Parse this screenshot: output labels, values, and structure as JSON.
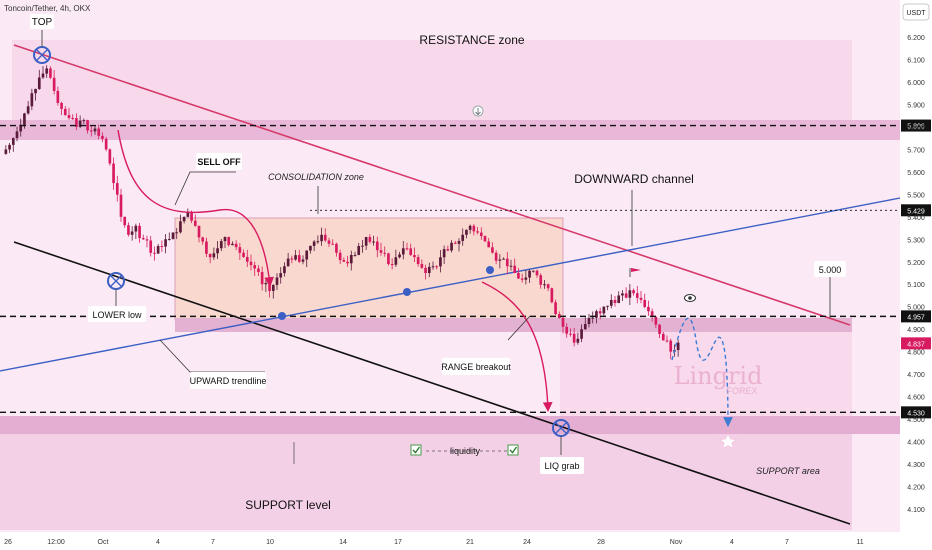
{
  "header": {
    "symbol_title": "Toncoin/Tether, 4h, OKX",
    "currency": "USDT"
  },
  "annotations": {
    "resistance_zone": "RESISTANCE zone",
    "top": "TOP",
    "sell_off": "SELL OFF",
    "consolidation_zone": "CONSOLIDATION zone",
    "downward_channel": "DOWNWARD channel",
    "lower_low": "LOWER low",
    "upward_trendline": "UPWARD trendline",
    "range_breakout": "RANGE breakout",
    "liquidity": "liquidity",
    "liq_grab": "LIQ grab",
    "support_level": "SUPPORT level",
    "support_area": "SUPPORT area",
    "level_5000_callout": "5.000"
  },
  "watermark": {
    "brand": "Lingrid",
    "sub": "FOREX"
  },
  "colors": {
    "background": "#fbeaf5",
    "zone_band": "#e9b8d8",
    "candle_up": "#5b1a3a",
    "candle_down": "#d81b60",
    "channel_upper": "#d63a6a",
    "channel_lower": "#111111",
    "trendline": "#3b5fc4",
    "projection": "#3a7bd5",
    "marker": "#3b5fc4"
  },
  "chart_data": {
    "type": "candlestick",
    "title": "Toncoin/Tether, 4h, OKX",
    "y_axis": {
      "unit": "USDT",
      "scale": "linear",
      "range": [
        4.1,
        6.28
      ],
      "ticks": [
        "6.200",
        "6.100",
        "6.000",
        "5.900",
        "5.800",
        "5.700",
        "5.600",
        "5.500",
        "5.400",
        "5.300",
        "5.200",
        "5.100",
        "5.000",
        "4.900",
        "4.800",
        "4.700",
        "4.600",
        "4.500",
        "4.400",
        "4.300",
        "4.200",
        "4.100"
      ]
    },
    "x_axis": {
      "ticks": [
        "26",
        "12:00",
        "Oct",
        "4",
        "7",
        "10",
        "14",
        "17",
        "21",
        "24",
        "28",
        "Nov",
        "4",
        "7",
        "11"
      ]
    },
    "price_levels": [
      {
        "value": 5.806,
        "label": "5.806",
        "style": "dashed"
      },
      {
        "value": 5.429,
        "label": "5.429",
        "style": "dotted"
      },
      {
        "value": 4.957,
        "label": "4.957",
        "style": "dashed"
      },
      {
        "value": 4.837,
        "label": "4.837",
        "style": "current"
      },
      {
        "value": 4.53,
        "label": "4.530",
        "style": "dashed"
      }
    ],
    "zones": [
      {
        "name": "resistance",
        "from": 5.77,
        "to": 5.84
      },
      {
        "name": "consolidation",
        "from": 4.99,
        "to": 5.42
      },
      {
        "name": "mid_support",
        "from": 4.93,
        "to": 4.99
      },
      {
        "name": "support",
        "from": 4.49,
        "to": 4.56
      }
    ],
    "close_series": [
      5.72,
      5.78,
      5.86,
      5.95,
      6.02,
      6.06,
      5.96,
      5.88,
      5.84,
      5.8,
      5.83,
      5.78,
      5.76,
      5.7,
      5.55,
      5.4,
      5.32,
      5.36,
      5.3,
      5.24,
      5.27,
      5.3,
      5.33,
      5.38,
      5.42,
      5.36,
      5.29,
      5.22,
      5.26,
      5.31,
      5.28,
      5.24,
      5.2,
      5.17,
      5.1,
      5.07,
      5.13,
      5.18,
      5.21,
      5.2,
      5.25,
      5.29,
      5.32,
      5.28,
      5.24,
      5.2,
      5.23,
      5.27,
      5.31,
      5.29,
      5.24,
      5.19,
      5.22,
      5.26,
      5.23,
      5.19,
      5.15,
      5.18,
      5.22,
      5.25,
      5.28,
      5.32,
      5.36,
      5.33,
      5.29,
      5.24,
      5.21,
      5.18,
      5.15,
      5.12,
      5.16,
      5.14,
      5.1,
      5.02,
      4.95,
      4.88,
      4.84,
      4.9,
      4.95,
      4.98,
      5.0,
      5.03,
      5.05,
      5.04,
      5.06,
      5.03,
      4.98,
      4.92,
      4.85,
      4.8,
      4.84
    ]
  }
}
